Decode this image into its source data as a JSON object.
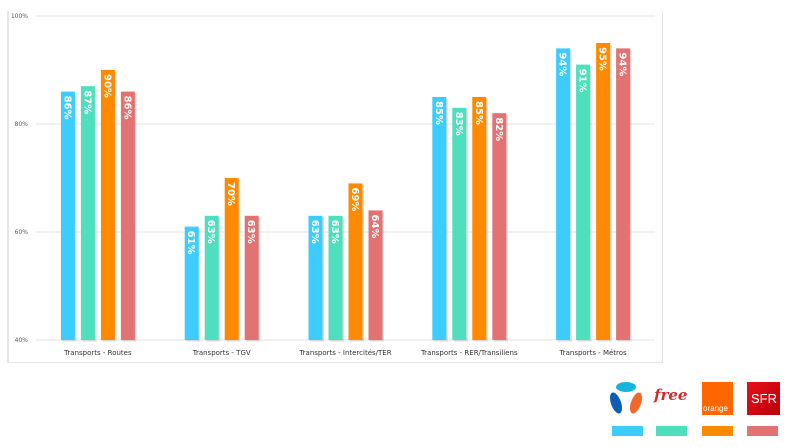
{
  "chart_data": {
    "type": "bar",
    "categories": [
      "Transports - Routes",
      "Transports - TGV",
      "Transports - Intercités/TER",
      "Transports - RER/Transiliens",
      "Transports - Métros"
    ],
    "series": [
      {
        "name": "Bouygues Telecom",
        "color": "#3dcdfc",
        "values": [
          86,
          61,
          63,
          85,
          94
        ],
        "labels": [
          "86%",
          "61%",
          "63%",
          "85%",
          "94%"
        ]
      },
      {
        "name": "Free",
        "color": "#4ee0be",
        "values": [
          87,
          63,
          63,
          83,
          91
        ],
        "labels": [
          "87%",
          "63%",
          "63%",
          "83%",
          "91%"
        ]
      },
      {
        "name": "Orange",
        "color": "#ff8a00",
        "values": [
          90,
          70,
          69,
          85,
          95
        ],
        "labels": [
          "90%",
          "70%",
          "69%",
          "85%",
          "95%"
        ]
      },
      {
        "name": "SFR",
        "color": "#e37272",
        "values": [
          86,
          63,
          64,
          82,
          94
        ],
        "labels": [
          "86%",
          "63%",
          "64%",
          "82%",
          "94%"
        ]
      }
    ],
    "yticks": [
      "40%",
      "60%",
      "80%",
      "100%"
    ],
    "ylim": [
      40,
      100
    ],
    "grid": true,
    "legend": "bottom-right, operator logos with color swatches"
  },
  "legend": {
    "logos": [
      {
        "text": "",
        "name": "bouygues"
      },
      {
        "text": "free",
        "name": "free"
      },
      {
        "text": "orange",
        "name": "orange"
      },
      {
        "text": "SFR",
        "name": "sfr"
      }
    ]
  }
}
